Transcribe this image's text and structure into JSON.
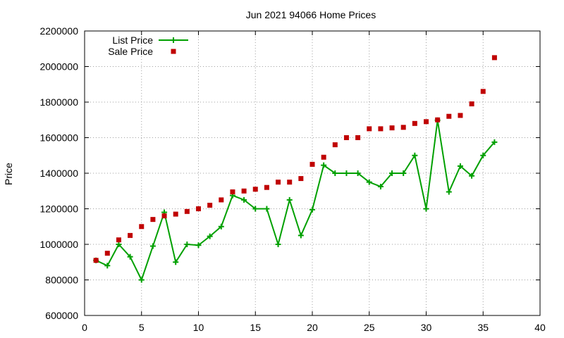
{
  "chart_data": {
    "type": "line",
    "title": "Jun 2021 94066 Home Prices",
    "xlabel": "",
    "ylabel": "Price",
    "xlim": [
      0,
      40
    ],
    "ylim": [
      600000,
      2200000
    ],
    "xticks": [
      0,
      5,
      10,
      15,
      20,
      25,
      30,
      35,
      40
    ],
    "yticks": [
      600000,
      800000,
      1000000,
      1200000,
      1400000,
      1600000,
      1800000,
      2000000,
      2200000
    ],
    "grid": true,
    "legend_position": "top-left",
    "x": [
      1,
      2,
      3,
      4,
      5,
      6,
      7,
      8,
      9,
      10,
      11,
      12,
      13,
      14,
      15,
      16,
      17,
      18,
      19,
      20,
      21,
      22,
      23,
      24,
      25,
      26,
      27,
      28,
      29,
      30,
      31,
      32,
      33,
      34,
      35,
      36
    ],
    "series": [
      {
        "name": "List Price",
        "style": "line+cross",
        "color": "#00a000",
        "values": [
          910000,
          880000,
          1000000,
          930000,
          800000,
          990000,
          1180000,
          900000,
          1000000,
          995000,
          1045000,
          1100000,
          1275000,
          1250000,
          1200000,
          1200000,
          1000000,
          1250000,
          1050000,
          1195000,
          1445000,
          1400000,
          1400000,
          1400000,
          1350000,
          1325000,
          1400000,
          1400000,
          1500000,
          1200000,
          1698000,
          1295000,
          1440000,
          1385000,
          1500000,
          1575000
        ]
      },
      {
        "name": "Sale Price",
        "style": "square-points",
        "color": "#c00000",
        "values": [
          910000,
          950000,
          1025000,
          1050000,
          1100000,
          1140000,
          1160000,
          1170000,
          1185000,
          1200000,
          1220000,
          1250000,
          1295000,
          1300000,
          1310000,
          1320000,
          1350000,
          1350000,
          1370000,
          1450000,
          1490000,
          1560000,
          1600000,
          1600000,
          1650000,
          1650000,
          1655000,
          1658000,
          1680000,
          1690000,
          1700000,
          1720000,
          1725000,
          1790000,
          1860000,
          2050000
        ]
      }
    ]
  }
}
